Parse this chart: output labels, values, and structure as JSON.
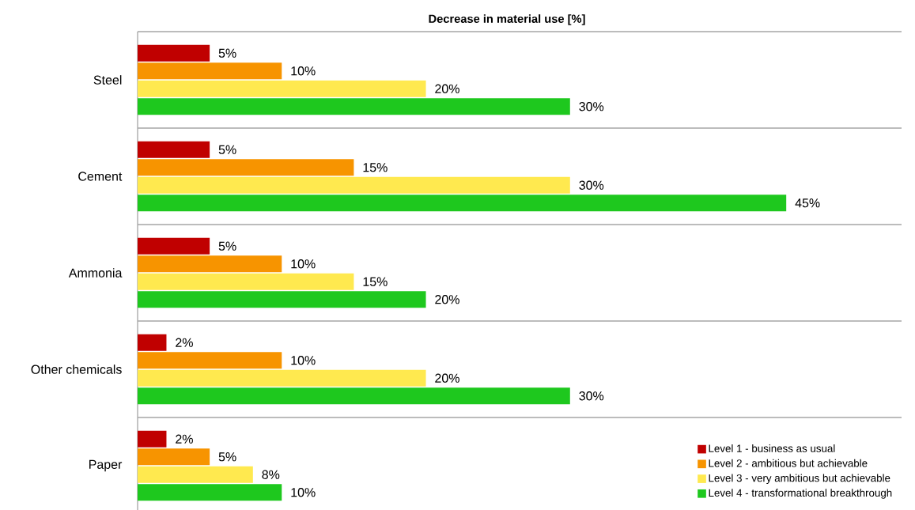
{
  "chart_data": {
    "type": "bar",
    "orientation": "horizontal",
    "title": "Decrease in material use [%]",
    "categories": [
      "Steel",
      "Cement",
      "Ammonia",
      "Other chemicals",
      "Paper"
    ],
    "series": [
      {
        "name": "Level 1 - business as usual",
        "color": "#c00000",
        "values": [
          5,
          5,
          5,
          2,
          2
        ],
        "value_labels": [
          "5%",
          "5%",
          "5%",
          "2%",
          "2%"
        ]
      },
      {
        "name": "Level 2 - ambitious but achievable",
        "color": "#f79400",
        "values": [
          10,
          15,
          10,
          10,
          5
        ],
        "value_labels": [
          "10%",
          "15%",
          "10%",
          "10%",
          "5%"
        ]
      },
      {
        "name": "Level 3 - very ambitious but achievable",
        "color": "#ffe94f",
        "values": [
          20,
          30,
          15,
          20,
          8
        ],
        "value_labels": [
          "20%",
          "30%",
          "15%",
          "20%",
          "8%"
        ]
      },
      {
        "name": "Level 4 - transformational breakthrough",
        "color": "#1ec81e",
        "values": [
          30,
          45,
          20,
          30,
          10
        ],
        "value_labels": [
          "30%",
          "45%",
          "20%",
          "30%",
          "10%"
        ]
      }
    ],
    "xlim": [
      0,
      53
    ],
    "grid": "y",
    "legend": "bottom right"
  }
}
